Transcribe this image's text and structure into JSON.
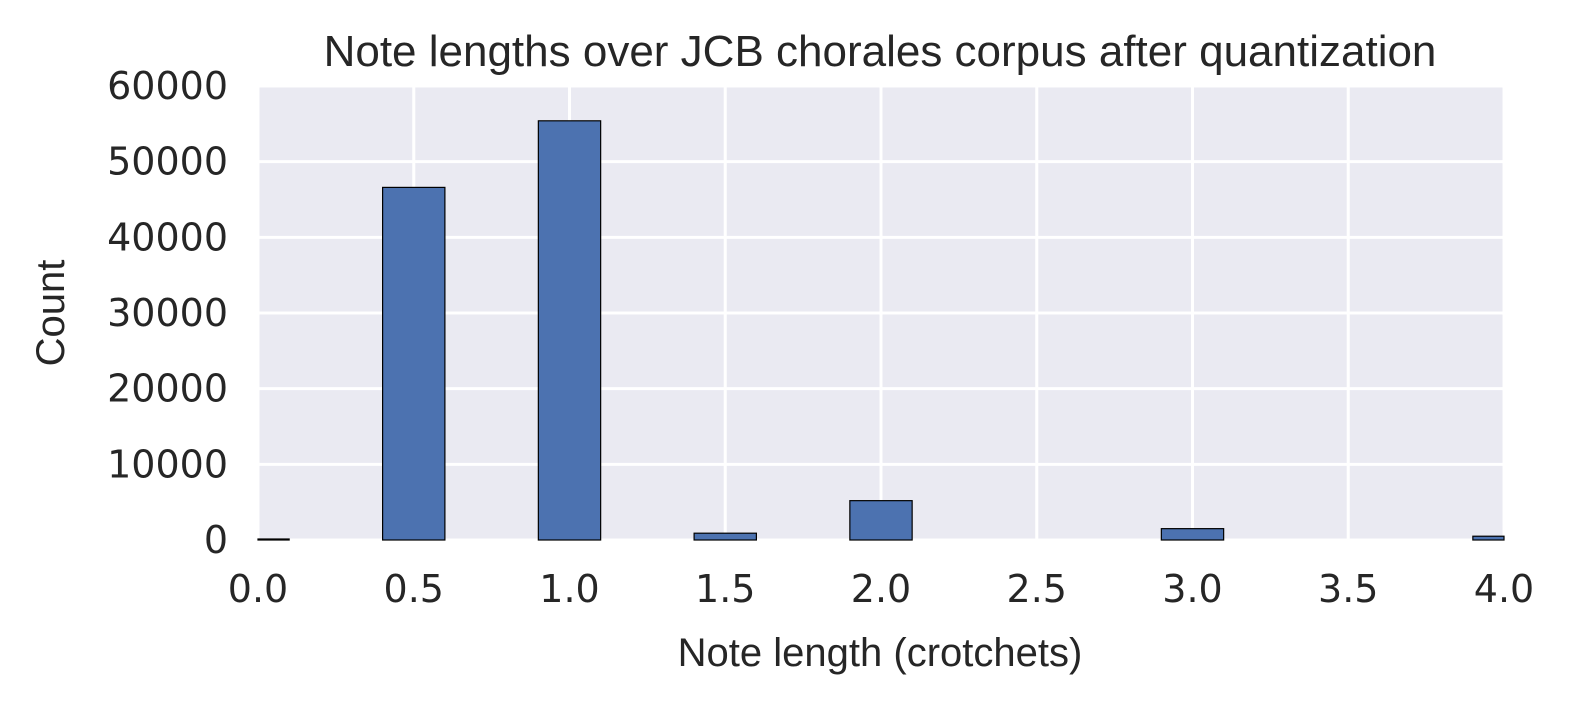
{
  "chart_data": {
    "type": "bar",
    "title": "Note lengths over JCB chorales corpus after quantization",
    "xlabel": "Note length (crotchets)",
    "ylabel": "Count",
    "xlim": [
      0.0,
      4.0
    ],
    "ylim": [
      0,
      60000
    ],
    "xticks": [
      "0.0",
      "0.5",
      "1.0",
      "1.5",
      "2.0",
      "2.5",
      "3.0",
      "3.5",
      "4.0"
    ],
    "yticks": [
      "0",
      "10000",
      "20000",
      "30000",
      "40000",
      "50000",
      "60000"
    ],
    "bin_width": 0.2,
    "x": [
      0.0,
      0.5,
      1.0,
      1.5,
      2.0,
      3.0,
      4.0
    ],
    "values": [
      100,
      46600,
      55400,
      900,
      5200,
      1500,
      500
    ],
    "grid": true,
    "colors": {
      "bar": "#4c72b0",
      "background": "#eaeaf2",
      "grid": "#ffffff",
      "text": "#262626"
    }
  }
}
